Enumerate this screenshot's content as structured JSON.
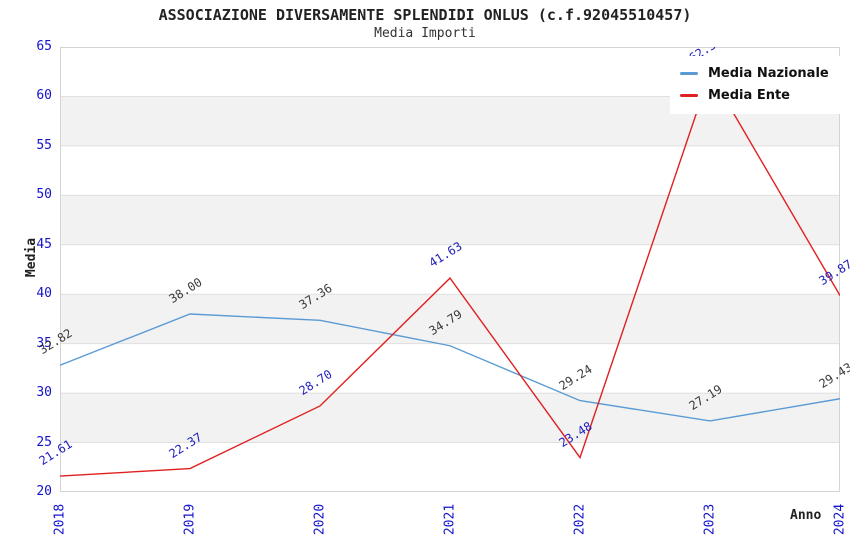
{
  "colors": {
    "axis_tick": "#1414cc",
    "grid_line": "#e0e0e0",
    "plot_border": "#d4d4d4",
    "band": "#f2f2f2",
    "title_text": "#222222"
  },
  "chart_data": {
    "type": "line",
    "title": "ASSOCIAZIONE DIVERSAMENTE SPLENDIDI ONLUS (c.f.92045510457)",
    "subtitle": "Media Importi",
    "xlabel": "Anno",
    "ylabel": "Media",
    "x": [
      "2018",
      "2019",
      "2020",
      "2021",
      "2022",
      "2023",
      "2024"
    ],
    "series": [
      {
        "name": "Media Nazionale",
        "color": "#5b9bd5",
        "label_color": "#3a3a3a",
        "values": [
          32.82,
          38.0,
          37.36,
          34.79,
          29.24,
          27.19,
          29.43
        ],
        "labels": [
          "32.82",
          "38.00",
          "37.36",
          "34.79",
          "29.24",
          "27.19",
          "29.43"
        ]
      },
      {
        "name": "Media Ente",
        "color": "#e02020",
        "label_color": "#2020bb",
        "values": [
          21.61,
          22.37,
          28.7,
          41.63,
          23.48,
          62.37,
          39.87
        ],
        "labels": [
          "21.61",
          "22.37",
          "28.70",
          "41.63",
          "23.48",
          "62.37",
          "39.87"
        ]
      }
    ],
    "ylim": [
      20,
      65
    ],
    "ytick_step": 5,
    "grid": true,
    "banded_background": true,
    "legend_position": "top-right"
  }
}
